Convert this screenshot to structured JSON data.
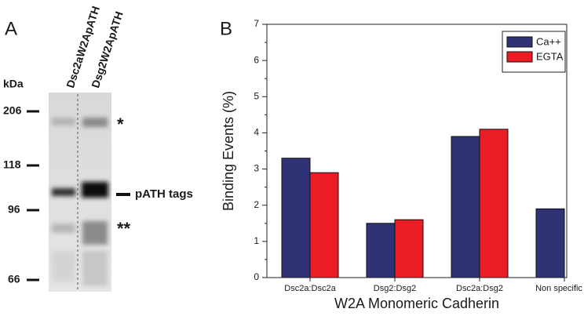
{
  "gel": {
    "panel_label": "A",
    "unit": "kDa",
    "markers": [
      "206",
      "118",
      "96",
      "66"
    ],
    "lanes": [
      "Dsc2aW2ApATH",
      "Dsg2W2ApATH"
    ],
    "annotations": [
      "*",
      "pATH tags",
      "**"
    ]
  },
  "chart_data": {
    "type": "bar",
    "panel_label": "B",
    "categories": [
      "Dsc2a:Dsc2a",
      "Dsg2:Dsg2",
      "Dsc2a:Dsg2",
      "Non specific"
    ],
    "series": [
      {
        "name": "Ca++",
        "color": "#2f3376",
        "values": [
          3.3,
          1.5,
          3.9,
          1.9
        ]
      },
      {
        "name": "EGTA",
        "color": "#ec1c24",
        "values": [
          2.9,
          1.6,
          4.1,
          null
        ]
      }
    ],
    "xlabel": "W2A Monomeric Cadherin",
    "ylabel": "Binding Events (%)",
    "ylim": [
      0,
      7
    ],
    "yticks": [
      0,
      1,
      2,
      3,
      4,
      5,
      6,
      7
    ],
    "legend": "upper right"
  }
}
